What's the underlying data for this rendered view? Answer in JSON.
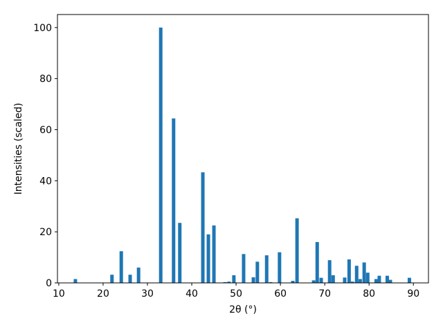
{
  "chart_data": {
    "type": "bar",
    "x_label": "2θ (°)",
    "y_label": "Intensities (scaled)",
    "x": [
      13.75,
      22.0,
      24.1,
      26.1,
      28.0,
      33.0,
      35.9,
      37.3,
      42.5,
      43.75,
      45.0,
      47.5,
      48.4,
      49.5,
      51.7,
      53.9,
      54.8,
      56.9,
      57.8,
      59.8,
      62.8,
      63.75,
      67.5,
      68.3,
      69.2,
      71.1,
      71.9,
      74.5,
      75.5,
      76.25,
      77.2,
      78.0,
      78.9,
      79.7,
      81.6,
      82.3,
      84.1,
      84.8,
      89.1
    ],
    "values": [
      1.5,
      3.2,
      12.4,
      3.2,
      6.0,
      100,
      64.4,
      23.5,
      43.3,
      19,
      22.5,
      0.3,
      0.5,
      3,
      11.3,
      2.2,
      8.3,
      10.8,
      0.3,
      12,
      0.8,
      25.3,
      1,
      16,
      2,
      8.9,
      3,
      2.1,
      9.2,
      0.5,
      6.7,
      1.5,
      8,
      4,
      1.5,
      2.8,
      2.8,
      1.2,
      2
    ],
    "color": "#1f77b4",
    "xlim": [
      9.7,
      93.4
    ],
    "xticks": [
      10,
      20,
      30,
      40,
      50,
      60,
      70,
      80,
      90
    ],
    "ylim": [
      0,
      105.1
    ],
    "yticks": [
      0,
      20,
      40,
      60,
      80,
      100
    ],
    "grid": false
  }
}
